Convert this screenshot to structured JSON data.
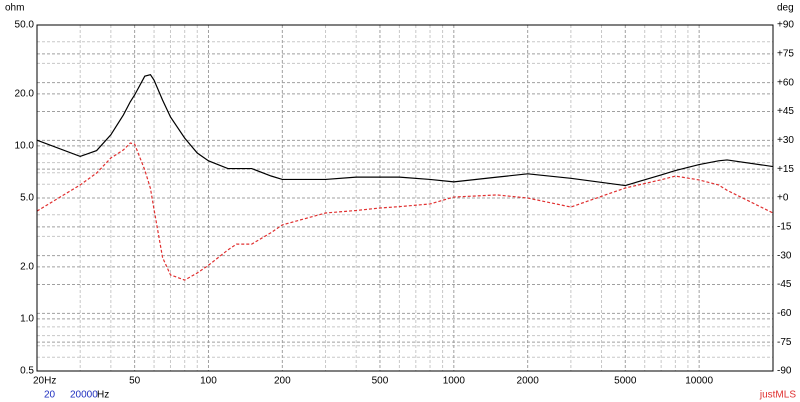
{
  "chart_data": {
    "type": "line",
    "y_label": "ohm",
    "y2_label": "deg",
    "xscale": "log",
    "yscale": "log",
    "grid": true,
    "xlim": [
      20,
      20000
    ],
    "ylim": [
      0.5,
      50
    ],
    "y2lim": [
      -90,
      90
    ],
    "xticks": [
      {
        "value": 20,
        "label": "20Hz"
      },
      50,
      100,
      200,
      500,
      1000,
      2000,
      5000,
      10000
    ],
    "xminorticks": [
      30,
      40,
      60,
      70,
      80,
      90,
      300,
      400,
      600,
      700,
      800,
      900,
      3000,
      4000,
      6000,
      7000,
      8000,
      9000
    ],
    "yticks": [
      {
        "value": 0.5,
        "label": "0.5"
      },
      {
        "value": 1,
        "label": "1.0"
      },
      {
        "value": 2,
        "label": "2.0"
      },
      {
        "value": 5,
        "label": "5.0"
      },
      {
        "value": 10,
        "label": "10.0"
      },
      {
        "value": 20,
        "label": "20.0"
      },
      {
        "value": 50,
        "label": "50.0"
      }
    ],
    "yminorticks": [
      0.6,
      0.7,
      0.8,
      0.9,
      3,
      4,
      6,
      7,
      8,
      9,
      30,
      40
    ],
    "y2ticks": [
      -90,
      -75,
      -60,
      -45,
      -30,
      -15,
      {
        "value": 0,
        "label": "+0"
      },
      {
        "value": 15,
        "label": "+15"
      },
      {
        "value": 30,
        "label": "+30"
      },
      {
        "value": 45,
        "label": "+45"
      },
      {
        "value": 60,
        "label": "+60"
      },
      {
        "value": 75,
        "label": "+75"
      },
      {
        "value": 90,
        "label": "+90"
      }
    ],
    "x": [
      20,
      30,
      35,
      40,
      45,
      48,
      50,
      55,
      58,
      60,
      65,
      70,
      80,
      90,
      100,
      120,
      130,
      150,
      180,
      200,
      300,
      400,
      500,
      600,
      800,
      1000,
      1500,
      2000,
      3000,
      5000,
      7000,
      8000,
      10000,
      12000,
      13000,
      20000
    ],
    "series": [
      {
        "color": "#000000",
        "dash": false,
        "values": [
          10.8,
          8.7,
          9.4,
          11.6,
          15.1,
          18,
          19.7,
          25.3,
          25.8,
          24,
          18.4,
          14.7,
          11.1,
          9.1,
          8.2,
          7.4,
          7.4,
          7.4,
          6.7,
          6.4,
          6.4,
          6.6,
          6.6,
          6.6,
          6.4,
          6.2,
          6.6,
          6.9,
          6.5,
          5.9,
          6.8,
          7.2,
          7.8,
          8.2,
          8.3,
          7.6
        ]
      },
      {
        "color": "#e03030",
        "dash": true,
        "axis": "y2",
        "values": [
          -6.8,
          6.8,
          13,
          20.8,
          25,
          28.6,
          28,
          14.6,
          5,
          -6,
          -31,
          -40,
          -42.7,
          -39,
          -35,
          -27,
          -24,
          -24,
          -18,
          -14,
          -7.8,
          -6.5,
          -5.2,
          -4.5,
          -3.1,
          0.5,
          1.6,
          0,
          -4.7,
          5.2,
          9.5,
          11.4,
          9.4,
          6.8,
          4,
          -7.8
        ]
      }
    ],
    "footer": {
      "start": 20,
      "end": 20000,
      "unit": "Hz"
    },
    "brand": "justMLS"
  }
}
